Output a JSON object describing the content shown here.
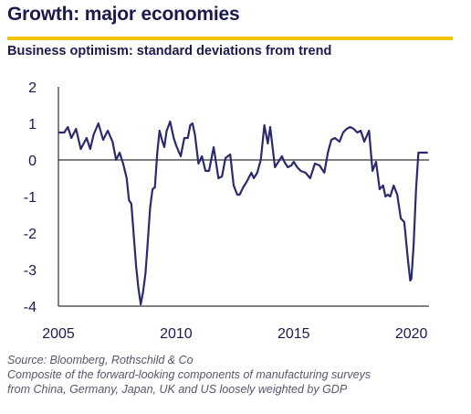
{
  "header": {
    "title": "Growth: major economies",
    "subtitle": "Business optimism: standard deviations from trend"
  },
  "colors": {
    "accent_rule": "#f2c300",
    "line": "#2b2a6e",
    "text": "#1b1a4f"
  },
  "chart_data": {
    "type": "line",
    "title": "Business optimism: standard deviations from trend",
    "xlabel": "",
    "ylabel": "",
    "xlim": [
      2005.0,
      2020.75
    ],
    "ylim": [
      -4,
      2
    ],
    "x_ticks": [
      "2005",
      "2010",
      "2015",
      "2020"
    ],
    "y_ticks": [
      "2",
      "1",
      "0",
      "-1",
      "-2",
      "-3",
      "-4"
    ],
    "grid": false,
    "zero_line": true,
    "series": [
      {
        "name": "",
        "x": [
          2005.0,
          2005.25,
          2005.4,
          2005.55,
          2005.75,
          2005.95,
          2006.2,
          2006.35,
          2006.5,
          2006.7,
          2006.9,
          2007.1,
          2007.3,
          2007.45,
          2007.6,
          2007.75,
          2007.9,
          2008.0,
          2008.1,
          2008.3,
          2008.4,
          2008.5,
          2008.6,
          2008.7,
          2008.8,
          2008.9,
          2009.0,
          2009.1,
          2009.2,
          2009.3,
          2009.4,
          2009.5,
          2009.6,
          2009.75,
          2009.9,
          2010.0,
          2010.2,
          2010.35,
          2010.5,
          2010.6,
          2010.7,
          2010.8,
          2010.95,
          2011.1,
          2011.25,
          2011.4,
          2011.6,
          2011.8,
          2011.95,
          2012.1,
          2012.3,
          2012.45,
          2012.6,
          2012.7,
          2012.85,
          2013.0,
          2013.2,
          2013.3,
          2013.45,
          2013.6,
          2013.75,
          2013.9,
          2014.0,
          2014.2,
          2014.35,
          2014.5,
          2014.6,
          2014.75,
          2014.9,
          2015.0,
          2015.15,
          2015.3,
          2015.5,
          2015.7,
          2015.9,
          2016.1,
          2016.3,
          2016.45,
          2016.6,
          2016.75,
          2016.95,
          2017.1,
          2017.25,
          2017.4,
          2017.55,
          2017.7,
          2017.85,
          2018.0,
          2018.2,
          2018.35,
          2018.5,
          2018.65,
          2018.8,
          2018.9,
          2019.0,
          2019.1,
          2019.25,
          2019.4,
          2019.55,
          2019.7,
          2019.85,
          2019.95,
          2020.0,
          2020.1,
          2020.2,
          2020.3,
          2020.4,
          2020.5,
          2020.6,
          2020.7
        ],
        "y": [
          0.75,
          0.75,
          0.9,
          0.6,
          0.85,
          0.3,
          0.6,
          0.3,
          0.7,
          1.0,
          0.55,
          0.8,
          0.5,
          0.0,
          0.2,
          -0.1,
          -0.5,
          -1.1,
          -1.2,
          -2.9,
          -3.5,
          -3.95,
          -3.6,
          -3.1,
          -2.2,
          -1.3,
          -0.8,
          -0.75,
          0.2,
          0.8,
          0.55,
          0.35,
          0.8,
          1.05,
          0.6,
          0.4,
          0.1,
          0.6,
          0.6,
          0.95,
          1.0,
          0.7,
          -0.1,
          0.1,
          -0.3,
          -0.3,
          0.35,
          -0.5,
          -0.45,
          0.05,
          0.15,
          -0.7,
          -0.95,
          -0.95,
          -0.75,
          -0.6,
          -0.35,
          -0.5,
          -0.35,
          0.0,
          0.95,
          0.45,
          0.9,
          -0.2,
          -0.05,
          0.1,
          -0.05,
          -0.2,
          -0.15,
          -0.05,
          -0.2,
          -0.3,
          -0.35,
          -0.5,
          -0.1,
          -0.15,
          -0.35,
          0.2,
          0.55,
          0.6,
          0.5,
          0.75,
          0.85,
          0.9,
          0.85,
          0.75,
          0.8,
          0.5,
          0.8,
          -0.3,
          -0.05,
          -0.8,
          -0.7,
          -1.0,
          -0.95,
          -1.0,
          -0.7,
          -0.95,
          -1.6,
          -1.7,
          -2.7,
          -3.3,
          -3.25,
          -2.3,
          -0.8,
          0.2,
          0.2,
          0.2,
          0.2,
          0.2
        ]
      }
    ]
  },
  "footer": {
    "source": "Source: Bloomberg, Rothschild & Co",
    "note_line1": "Composite of the forward-looking components of manufacturing surveys",
    "note_line2": "from China, Germany, Japan, UK and US loosely weighted by GDP"
  }
}
